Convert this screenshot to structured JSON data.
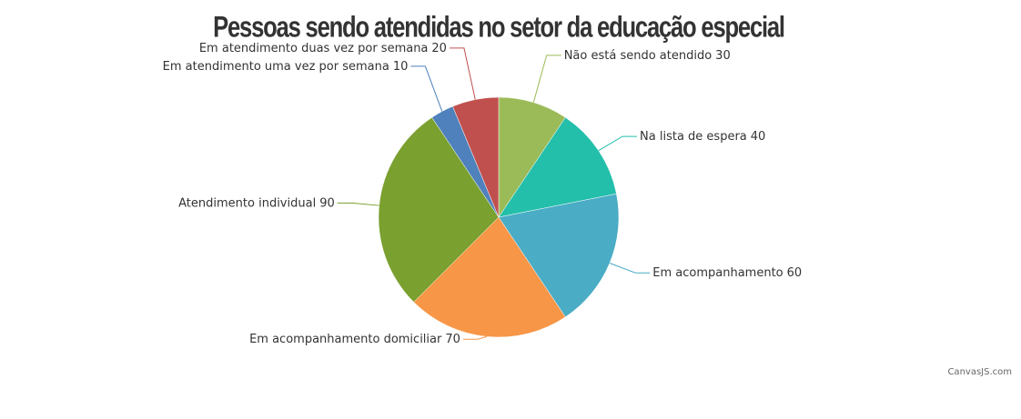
{
  "chart_data": {
    "type": "pie",
    "title": "Pessoas sendo atendidas no setor da educação especial",
    "categories": [
      "Não está sendo atendido",
      "Na lista de espera",
      "Em acompanhamento",
      "Em acompanhamento domiciliar",
      "Atendimento individual",
      "Em atendimento uma vez por semana",
      "Em atendimento duas vez por semana"
    ],
    "values": [
      30,
      40,
      60,
      70,
      90,
      10,
      20
    ],
    "colors": [
      "#9bbb59",
      "#23bfaa",
      "#4aacc5",
      "#f79647",
      "#7aa02f",
      "#4f81bc",
      "#c0504e"
    ],
    "credit": "CanvasJS.com"
  }
}
